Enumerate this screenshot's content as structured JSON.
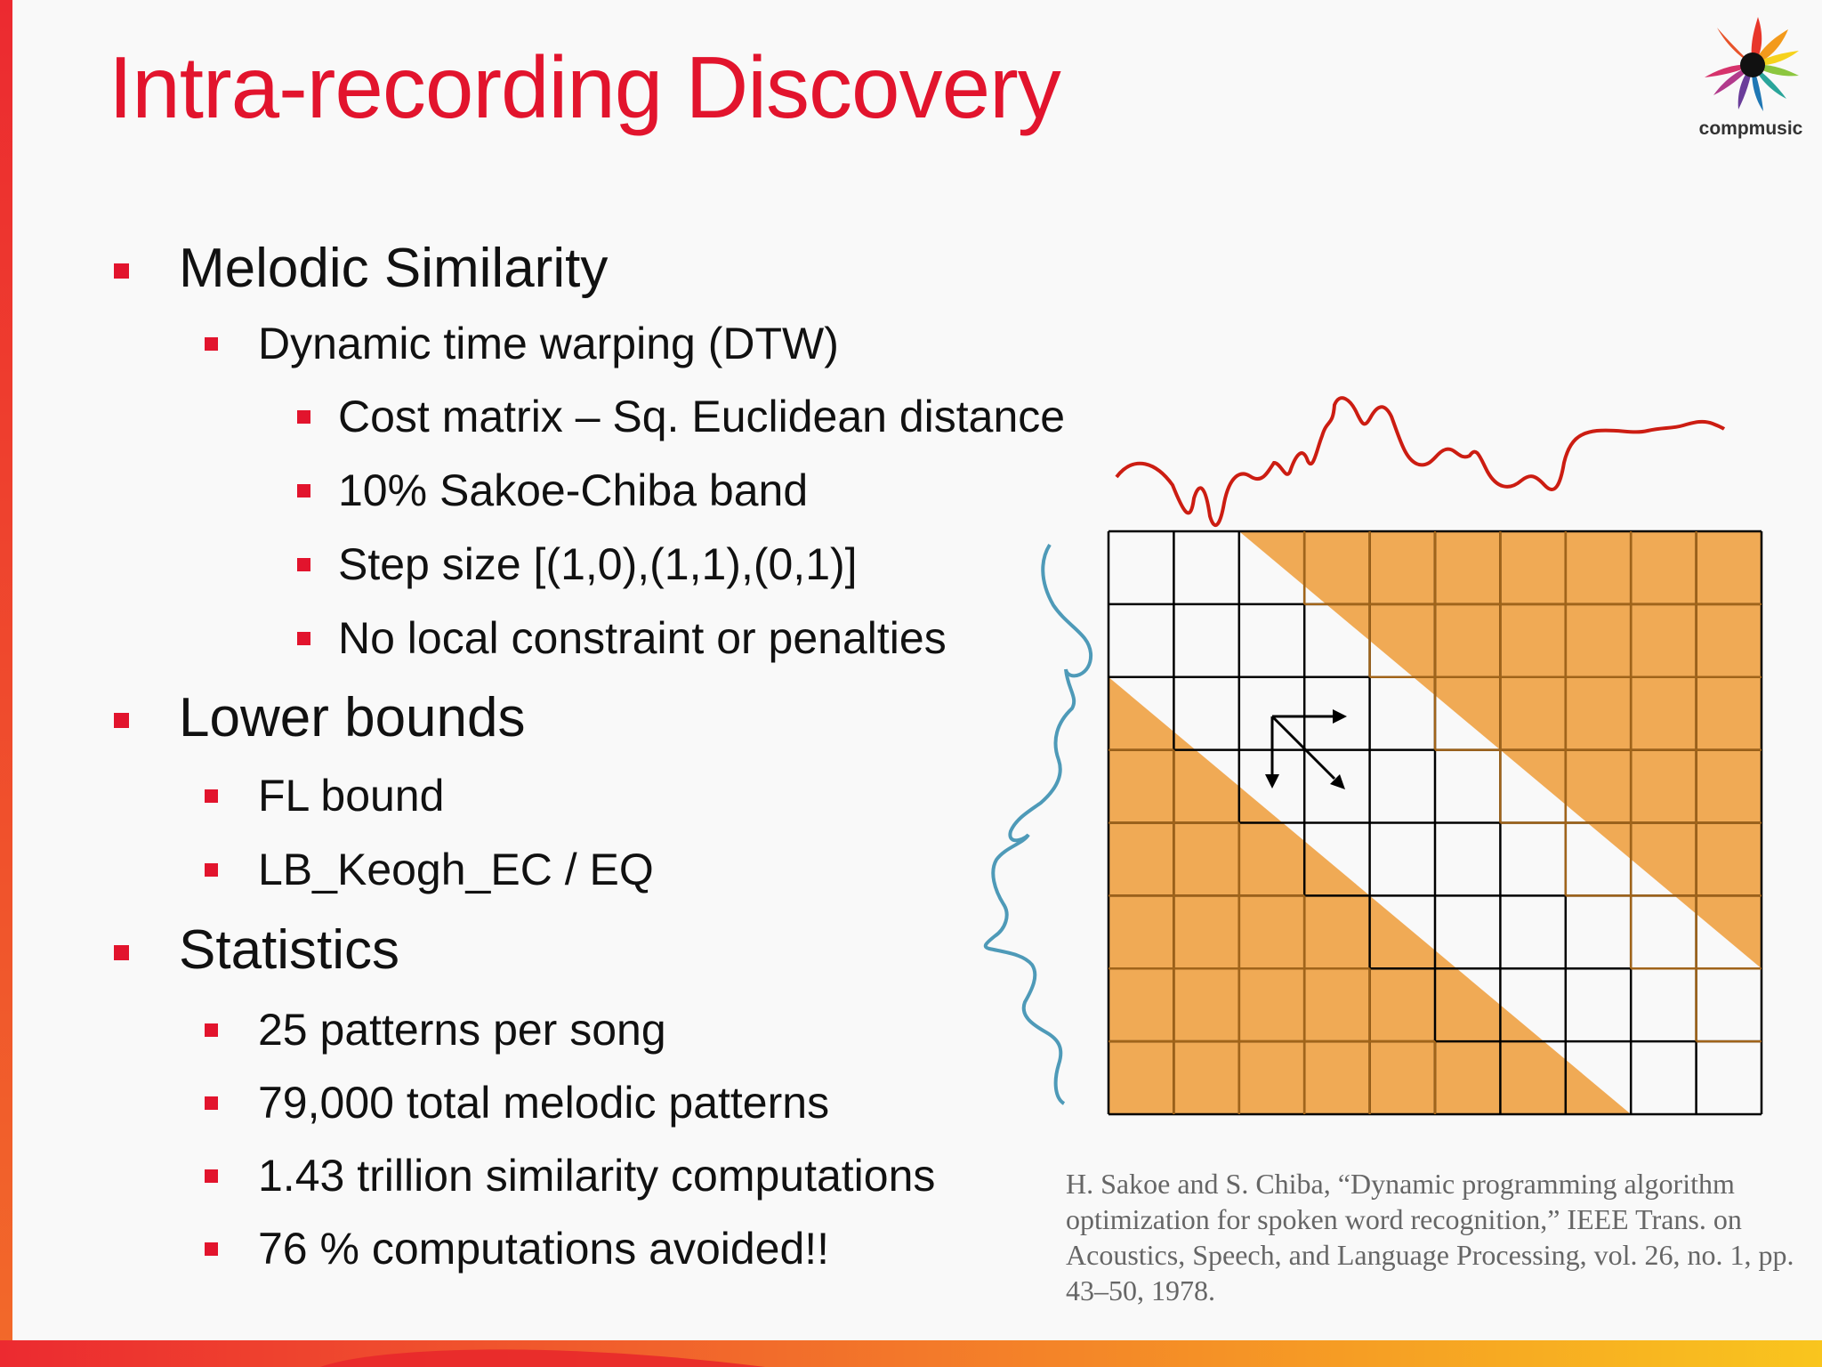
{
  "slide": {
    "title": "Intra-recording Discovery",
    "logo_label": "compmusic"
  },
  "bullets": {
    "melodic_similarity": {
      "label": "Melodic Similarity",
      "dtw": {
        "label": "Dynamic time warping (DTW)",
        "items": [
          "Cost matrix – Sq. Euclidean distance",
          "10% Sakoe-Chiba band",
          "Step size [(1,0),(1,1),(0,1)]",
          "No local constraint or penalties"
        ]
      }
    },
    "lower_bounds": {
      "label": "Lower bounds",
      "items": [
        "FL bound",
        "LB_Keogh_EC / EQ"
      ]
    },
    "statistics": {
      "label": "Statistics",
      "items": [
        "25 patterns per song",
        "79,000 total melodic patterns",
        "1.43 trillion similarity computations",
        "76 % computations avoided!!"
      ]
    }
  },
  "figure": {
    "grid_columns": 10,
    "grid_rows": 8,
    "colors": {
      "band_fill": "#f0aa55",
      "band_line": "#a0641a",
      "grid_line": "#000000",
      "top_signal": "#cc1d12",
      "left_signal": "#4e9ab8"
    }
  },
  "citation": "H. Sakoe and S. Chiba, “Dynamic programming algorithm optimization for spoken word recognition,” IEEE Trans. on Acoustics, Speech, and Language Processing, vol. 26, no. 1, pp. 43–50, 1978.",
  "theme": {
    "accent": "#e2142d",
    "bar_colors": [
      "#ec2a30",
      "#f3782a",
      "#f9c51e"
    ]
  }
}
